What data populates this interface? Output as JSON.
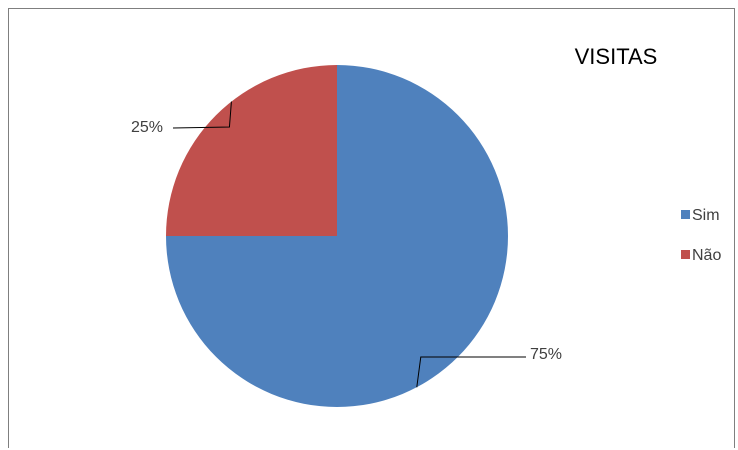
{
  "chart_data": {
    "type": "pie",
    "title": "VISITAS",
    "categories": [
      "Sim",
      "Não"
    ],
    "values": [
      75,
      25
    ],
    "data_labels": [
      "75%",
      "25%"
    ],
    "colors": [
      "#4f81bd",
      "#c0504d"
    ],
    "legend_position": "right",
    "start_angle": "12 o'clock, clockwise"
  }
}
